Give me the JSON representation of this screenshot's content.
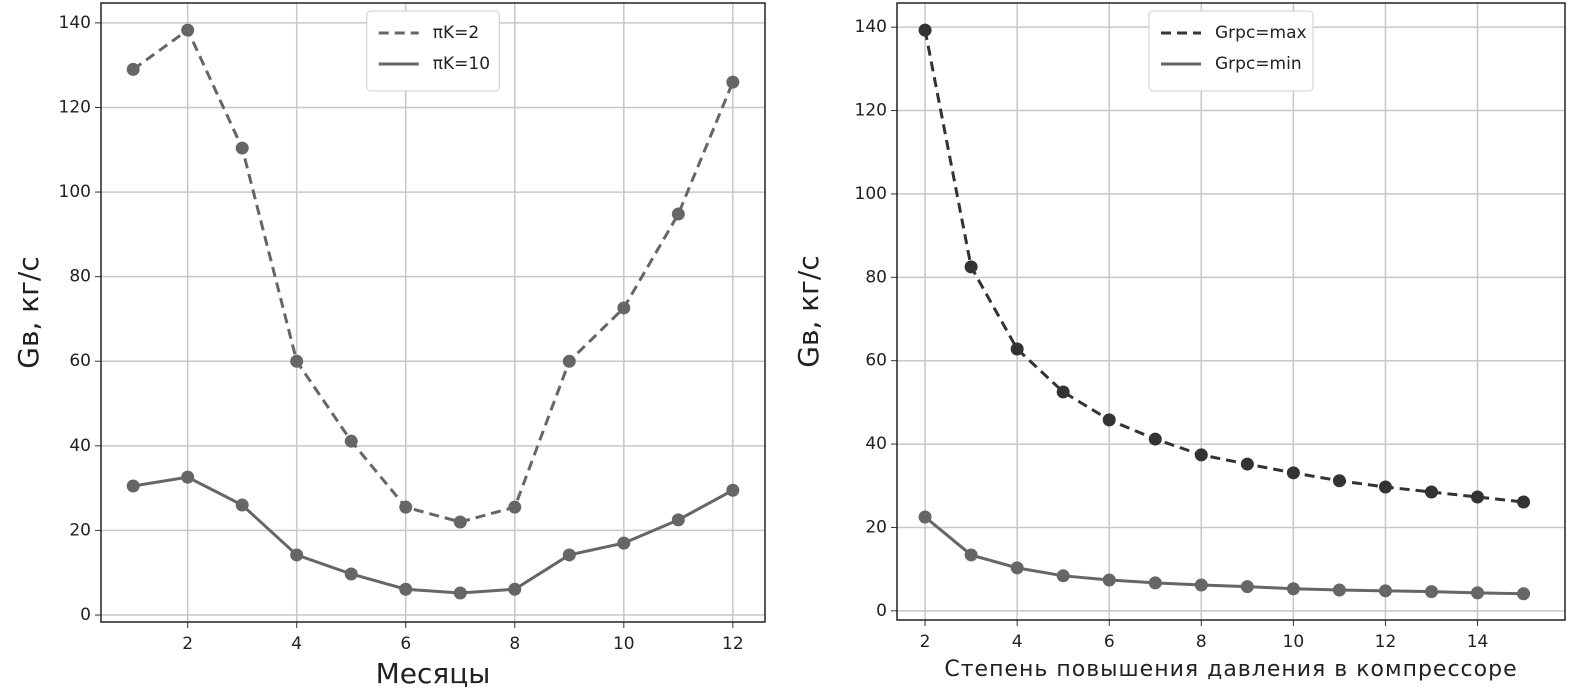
{
  "chart_data": [
    {
      "type": "line",
      "xlabel": "Месяцы",
      "ylabel": "Gв, кг/с",
      "x": [
        1,
        2,
        3,
        4,
        5,
        6,
        7,
        8,
        9,
        10,
        11,
        12
      ],
      "series": [
        {
          "name": "πK=2",
          "color": "#666666",
          "linestyle": "dashed",
          "values": [
            129,
            138.3,
            110.4,
            60,
            41.1,
            25.5,
            22,
            25.5,
            60,
            72.6,
            94.8,
            126
          ]
        },
        {
          "name": "πK=10",
          "color": "#666666",
          "linestyle": "solid",
          "values": [
            30.5,
            32.6,
            26,
            14.2,
            9.7,
            6.1,
            5.2,
            6.1,
            14.2,
            17,
            22.5,
            29.5
          ]
        }
      ],
      "xlim": [
        0.41,
        12.59
      ],
      "ylim": [
        -1.65,
        144.7
      ],
      "xticks": [
        2,
        4,
        6,
        8,
        10,
        12
      ],
      "yticks": [
        0,
        20,
        40,
        60,
        80,
        100,
        120,
        140
      ],
      "grid": true,
      "legend": "upper center"
    },
    {
      "type": "line",
      "xlabel": "Степень повышения давления в компрессоре",
      "ylabel": "Gв, кг/с",
      "x": [
        2,
        3,
        4,
        5,
        6,
        7,
        8,
        9,
        10,
        11,
        12,
        13,
        14,
        15
      ],
      "series": [
        {
          "name": "Grpc=max",
          "color": "#333333",
          "linestyle": "dashed",
          "values": [
            139.3,
            82.5,
            62.8,
            52.5,
            45.8,
            41.2,
            37.4,
            35.2,
            33.1,
            31.2,
            29.7,
            28.5,
            27.3,
            26.1
          ]
        },
        {
          "name": "Grpc=min",
          "color": "#666666",
          "linestyle": "solid",
          "values": [
            22.5,
            13.4,
            10.3,
            8.4,
            7.4,
            6.7,
            6.2,
            5.8,
            5.3,
            5,
            4.8,
            4.6,
            4.3,
            4.1
          ]
        }
      ],
      "xlim": [
        1.39,
        15.9
      ],
      "ylim": [
        -2.2,
        145.8
      ],
      "xticks": [
        2,
        4,
        6,
        8,
        10,
        12,
        14
      ],
      "yticks": [
        0,
        20,
        40,
        60,
        80,
        100,
        120,
        140
      ],
      "grid": true,
      "legend": "upper center"
    }
  ]
}
